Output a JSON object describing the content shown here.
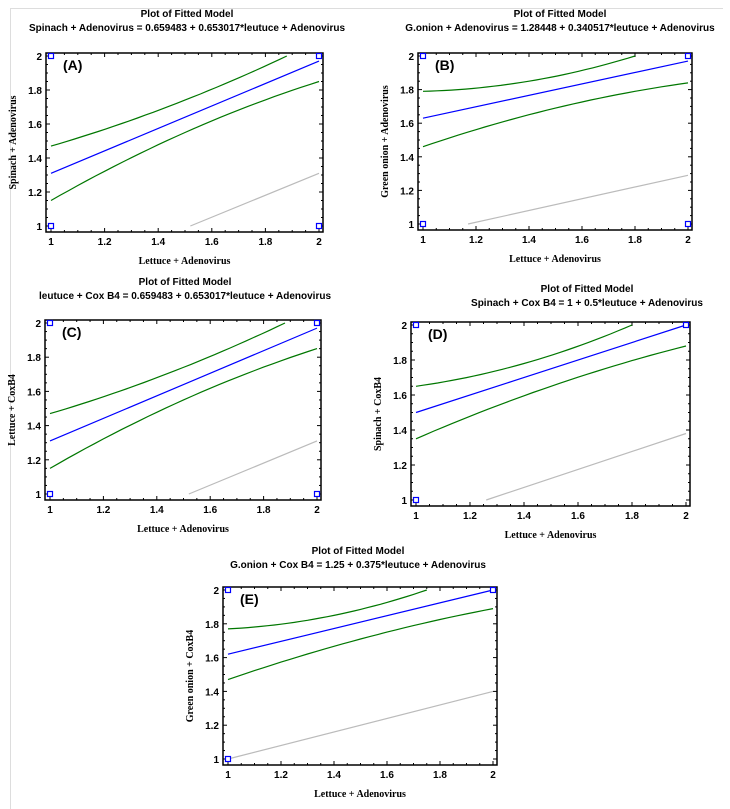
{
  "chart_data": [
    {
      "type": "line",
      "panel_label": "(A)",
      "title": "Plot of Fitted Model",
      "subtitle": "Spinach  + Adenovirus = 0.659483 + 0.653017*leutuce  + Adenovirus",
      "xlabel": "Lettuce + Adenovirus",
      "ylabel": "Spinach  + Adenovirus",
      "xlim": [
        1,
        2
      ],
      "ylim": [
        1,
        2
      ],
      "xticks": [
        "1",
        "1.2",
        "1.4",
        "1.6",
        "1.8",
        "2"
      ],
      "yticks": [
        "1",
        "1.2",
        "1.4",
        "1.6",
        "1.8",
        "2"
      ],
      "series": [
        {
          "name": "fitted",
          "color": "#0000ff",
          "x": [
            1,
            2
          ],
          "y": [
            1.31,
            1.97
          ]
        },
        {
          "name": "upper confidence",
          "color": "#007700",
          "x": [
            1,
            1.4,
            1.88
          ],
          "y": [
            1.47,
            1.68,
            2.0
          ]
        },
        {
          "name": "lower confidence",
          "color": "#007700",
          "x": [
            1,
            1.5,
            2
          ],
          "y": [
            1.15,
            1.55,
            1.85
          ]
        },
        {
          "name": "prediction limit",
          "color": "#bbbbbb",
          "x": [
            1.52,
            2
          ],
          "y": [
            1.0,
            1.31
          ]
        }
      ],
      "points": {
        "x": [
          1,
          1,
          2,
          2
        ],
        "y": [
          2,
          1,
          2,
          1
        ]
      }
    },
    {
      "type": "line",
      "panel_label": "(B)",
      "title": "Plot of Fitted Model",
      "subtitle": "G.onion  + Adenovirus = 1.28448 + 0.340517*leutuce  + Adenovirus",
      "xlabel": "Lettuce + Adenovirus",
      "ylabel": "Green onion + Adenovirus",
      "xlim": [
        1,
        2
      ],
      "ylim": [
        1,
        2
      ],
      "xticks": [
        "1",
        "1.2",
        "1.4",
        "1.6",
        "1.8",
        "2"
      ],
      "yticks": [
        "1",
        "1.2",
        "1.4",
        "1.6",
        "1.8",
        "2"
      ],
      "series": [
        {
          "name": "fitted",
          "color": "#0000ff",
          "x": [
            1,
            2
          ],
          "y": [
            1.63,
            1.97
          ]
        },
        {
          "name": "upper confidence",
          "color": "#007700",
          "x": [
            1,
            1.4,
            1.8
          ],
          "y": [
            1.79,
            1.85,
            2.0
          ]
        },
        {
          "name": "lower confidence",
          "color": "#007700",
          "x": [
            1,
            1.5,
            2
          ],
          "y": [
            1.46,
            1.69,
            1.84
          ]
        },
        {
          "name": "prediction limit",
          "color": "#bbbbbb",
          "x": [
            1.17,
            2
          ],
          "y": [
            1.0,
            1.29
          ]
        }
      ],
      "points": {
        "x": [
          1,
          1,
          2,
          2
        ],
        "y": [
          2,
          1,
          2,
          1
        ]
      }
    },
    {
      "type": "line",
      "panel_label": "(C)",
      "title": "Plot of Fitted Model",
      "subtitle": "leutuce  + Cox B4 = 0.659483 + 0.653017*leutuce  + Adenovirus",
      "xlabel": "Lettuce + Adenovirus",
      "ylabel": "Lettuce + CoxB4",
      "xlim": [
        1,
        2
      ],
      "ylim": [
        1,
        2
      ],
      "xticks": [
        "1",
        "1.2",
        "1.4",
        "1.6",
        "1.8",
        "2"
      ],
      "yticks": [
        "1",
        "1.2",
        "1.4",
        "1.6",
        "1.8",
        "2"
      ],
      "series": [
        {
          "name": "fitted",
          "color": "#0000ff",
          "x": [
            1,
            2
          ],
          "y": [
            1.31,
            1.97
          ]
        },
        {
          "name": "upper confidence",
          "color": "#007700",
          "x": [
            1,
            1.4,
            1.88
          ],
          "y": [
            1.47,
            1.68,
            2.0
          ]
        },
        {
          "name": "lower confidence",
          "color": "#007700",
          "x": [
            1,
            1.5,
            2
          ],
          "y": [
            1.15,
            1.55,
            1.85
          ]
        },
        {
          "name": "prediction limit",
          "color": "#bbbbbb",
          "x": [
            1.52,
            2
          ],
          "y": [
            1.0,
            1.31
          ]
        }
      ],
      "points": {
        "x": [
          1,
          1,
          2,
          2
        ],
        "y": [
          2,
          1,
          2,
          1
        ]
      }
    },
    {
      "type": "line",
      "panel_label": "(D)",
      "title": "Plot of Fitted Model",
      "subtitle": "Spinach  + Cox B4 = 1 + 0.5*leutuce  + Adenovirus",
      "xlabel": "Lettuce + Adenovirus",
      "ylabel": "Spinach + CoxB4",
      "xlim": [
        1,
        2
      ],
      "ylim": [
        1,
        2
      ],
      "xticks": [
        "1",
        "1.2",
        "1.4",
        "1.6",
        "1.8",
        "2"
      ],
      "yticks": [
        "1",
        "1.2",
        "1.4",
        "1.6",
        "1.8",
        "2"
      ],
      "series": [
        {
          "name": "fitted",
          "color": "#0000ff",
          "x": [
            1,
            2
          ],
          "y": [
            1.5,
            2.0
          ]
        },
        {
          "name": "upper confidence",
          "color": "#007700",
          "x": [
            1,
            1.4,
            1.8
          ],
          "y": [
            1.65,
            1.78,
            2.0
          ]
        },
        {
          "name": "lower confidence",
          "color": "#007700",
          "x": [
            1,
            1.5,
            2
          ],
          "y": [
            1.35,
            1.65,
            1.88
          ]
        },
        {
          "name": "prediction limit",
          "color": "#bbbbbb",
          "x": [
            1.26,
            2
          ],
          "y": [
            1.0,
            1.38
          ]
        }
      ],
      "points": {
        "x": [
          1,
          1,
          2
        ],
        "y": [
          2,
          1,
          2
        ]
      }
    },
    {
      "type": "line",
      "panel_label": "(E)",
      "title": "Plot of Fitted Model",
      "subtitle": "G.onion  + Cox B4 = 1.25 + 0.375*leutuce  + Adenovirus",
      "xlabel": "Lettuce + Adenovirus",
      "ylabel": "Green onion + CoxB4",
      "xlim": [
        1,
        2
      ],
      "ylim": [
        1,
        2
      ],
      "xticks": [
        "1",
        "1.2",
        "1.4",
        "1.6",
        "1.8",
        "2"
      ],
      "yticks": [
        "1",
        "1.2",
        "1.4",
        "1.6",
        "1.8",
        "2"
      ],
      "series": [
        {
          "name": "fitted",
          "color": "#0000ff",
          "x": [
            1,
            2
          ],
          "y": [
            1.62,
            2.0
          ]
        },
        {
          "name": "upper confidence",
          "color": "#007700",
          "x": [
            1,
            1.4,
            1.75
          ],
          "y": [
            1.77,
            1.85,
            2.0
          ]
        },
        {
          "name": "lower confidence",
          "color": "#007700",
          "x": [
            1,
            1.5,
            2
          ],
          "y": [
            1.47,
            1.71,
            1.89
          ]
        },
        {
          "name": "prediction limit",
          "color": "#bbbbbb",
          "x": [
            1,
            2
          ],
          "y": [
            1.0,
            1.4
          ]
        }
      ],
      "points": {
        "x": [
          1,
          1,
          2
        ],
        "y": [
          2,
          1,
          2
        ]
      }
    }
  ]
}
